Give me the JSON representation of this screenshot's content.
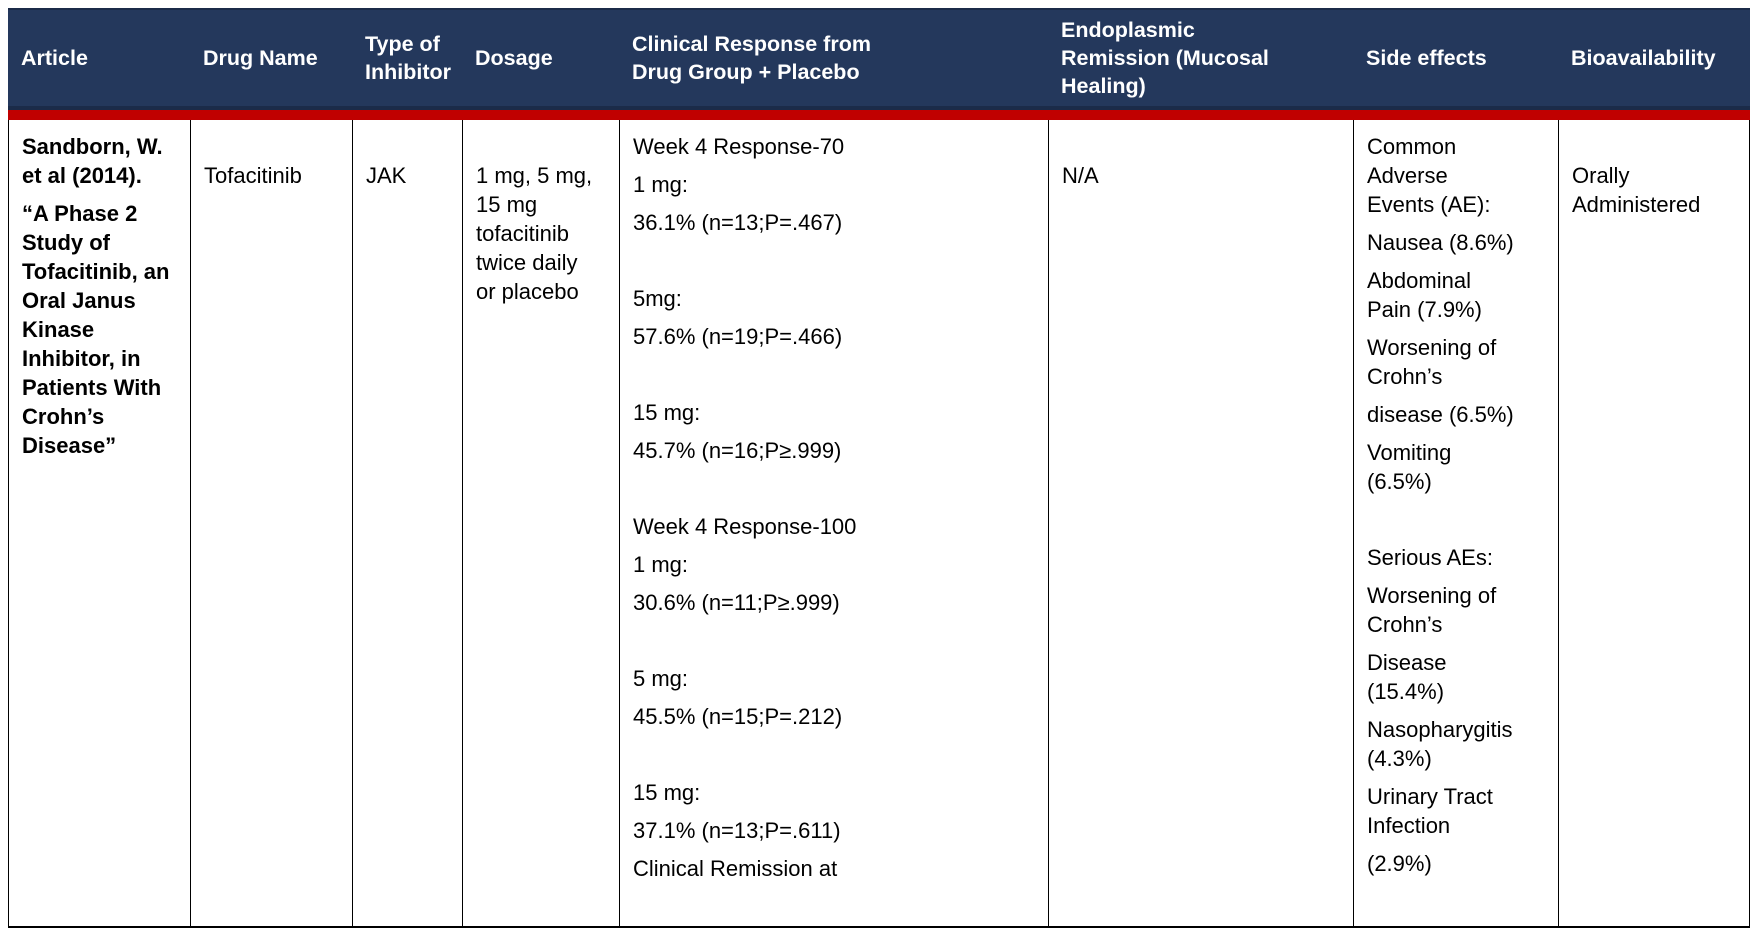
{
  "colors": {
    "header_bg": "#24385C",
    "header_text": "#FFFFFF",
    "header_border": "#1B2B49",
    "divider": "#C00000",
    "cell_border": "#000000",
    "body_text": "#000000"
  },
  "table": {
    "headers": [
      "Article",
      "Drug Name",
      "Type of\nInhibitor",
      "Dosage",
      "Clinical Response from\nDrug Group + Placebo",
      "Endoplasmic\nRemission (Mucosal\nHealing)",
      "Side effects",
      "Bioavailability"
    ],
    "row": {
      "article": [
        "Sandborn, W.\net al (2014).",
        "“A Phase 2\nStudy of\nTofacitinib, an\nOral Janus\nKinase\nInhibitor, in\nPatients With\nCrohn’s\nDisease”"
      ],
      "drug_name": "Tofacitinib",
      "type_of_inhibitor": "JAK",
      "dosage": "1 mg, 5 mg,\n15 mg\ntofacitinib\ntwice daily\nor placebo",
      "clinical_response": [
        "Week 4 Response-70",
        "1 mg:",
        "36.1% (n=13;P=.467)",
        "",
        "5mg:",
        "57.6% (n=19;P=.466)",
        "",
        "15 mg:",
        "45.7% (n=16;P≥.999)",
        "",
        "Week 4 Response-100",
        "1 mg:",
        "30.6% (n=11;P≥.999)",
        "",
        "5 mg:",
        "45.5% (n=15;P=.212)",
        "",
        "15 mg:",
        "37.1% (n=13;P=.611)",
        "Clinical Remission at"
      ],
      "endoplasmic_remission": "N/A",
      "side_effects": [
        "Common\nAdverse\nEvents (AE):",
        "Nausea (8.6%)",
        "Abdominal\nPain (7.9%)",
        "Worsening of\nCrohn’s",
        "disease (6.5%)",
        "Vomiting\n(6.5%)",
        "",
        "Serious AEs:",
        "Worsening of\nCrohn’s",
        "Disease\n(15.4%)",
        "Nasopharygitis\n(4.3%)",
        "Urinary Tract\nInfection",
        "(2.9%)"
      ],
      "bioavailability": "Orally\nAdministered"
    }
  }
}
